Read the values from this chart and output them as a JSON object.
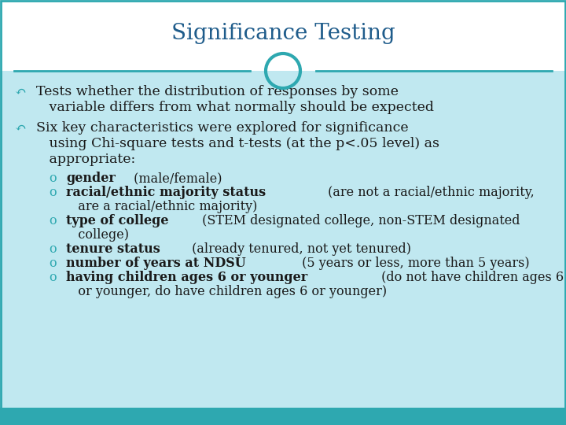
{
  "title": "Significance Testing",
  "title_color": "#1F5C8B",
  "background_color": "#C0E8F0",
  "header_bg": "#FFFFFF",
  "teal_line_color": "#2EA8B0",
  "circle_color": "#2EA8B0",
  "body_text_color": "#1a1a1a",
  "bullet_symbol": "↶",
  "sub_bullet_symbol": "o",
  "footer_color": "#2EA8B0",
  "font_family": "DejaVu Serif",
  "title_fontsize": 20,
  "body_fontsize": 12.5,
  "sub_fontsize": 11.5,
  "bullet1_line1": "Tests whether the distribution of responses by some",
  "bullet1_line2": "   variable differs from what normally should be expected",
  "bullet2_line1": "Six key characteristics were explored for significance",
  "bullet2_line2": "   using Chi-square tests and t-tests (at the p<.05 level) as",
  "bullet2_line3": "   appropriate:",
  "sub_bullets": [
    {
      "bold": "gender",
      "rest": " (male/female)",
      "extra": ""
    },
    {
      "bold": "racial/ethnic majority status",
      "rest": " (are not a racial/ethnic majority,",
      "extra": "   are a racial/ethnic majority)"
    },
    {
      "bold": "type of college",
      "rest": " (STEM designated college, non-STEM designated",
      "extra": "   college)"
    },
    {
      "bold": "tenure status",
      "rest": " (already tenured, not yet tenured)",
      "extra": ""
    },
    {
      "bold": "number of years at NDSU",
      "rest": " (5 years or less, more than 5 years)",
      "extra": ""
    },
    {
      "bold": "having children ages 6 or younger",
      "rest": " (do not have children ages 6",
      "extra": "   or younger, do have children ages 6 or younger)"
    }
  ]
}
